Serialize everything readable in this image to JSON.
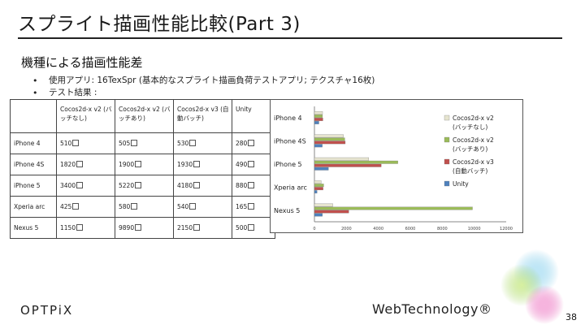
{
  "slide": {
    "title": "スプライト描画性能比較(Part 3)",
    "subtitle": "機種による描画性能差",
    "bullets": [
      "使用アプリ: 16TexSpr (基本的なスプライト描画負荷テストアプリ; テクスチャ16枚)",
      "テスト結果 :"
    ],
    "page_number": "38"
  },
  "table": {
    "headers": [
      "",
      "Cocos2d-x v2 (バッチなし)",
      "Cocos2d-x v2 (バッチあり)",
      "Cocos2d-x v3 (自動バッチ)",
      "Unity"
    ],
    "rows": [
      [
        "iPhone 4",
        "510",
        "505",
        "530",
        "280"
      ],
      [
        "iPhone 4S",
        "1820",
        "1900",
        "1930",
        "490"
      ],
      [
        "iPhone 5",
        "3400",
        "5220",
        "4180",
        "880"
      ],
      [
        "Xperia arc",
        "425",
        "580",
        "540",
        "165"
      ],
      [
        "Nexus 5",
        "1150",
        "9890",
        "2150",
        "500"
      ]
    ]
  },
  "chart_data": {
    "type": "bar",
    "orientation": "horizontal",
    "categories": [
      "iPhone 4",
      "iPhone 4S",
      "iPhone 5",
      "Xperia arc",
      "Nexus 5"
    ],
    "series": [
      {
        "name": "Cocos2d-x v2 (バッチなし)",
        "color": "#e6e4cf",
        "values": [
          510,
          1820,
          3400,
          425,
          1150
        ]
      },
      {
        "name": "Cocos2d-x v2 (バッチあり)",
        "color": "#9bbb59",
        "values": [
          505,
          1900,
          5220,
          580,
          9890
        ]
      },
      {
        "name": "Cocos2d-x v3 (自動バッチ)",
        "color": "#c0504d",
        "values": [
          530,
          1930,
          4180,
          540,
          2150
        ]
      },
      {
        "name": "Unity",
        "color": "#4f81bd",
        "values": [
          280,
          490,
          880,
          165,
          500
        ]
      }
    ],
    "xlim": [
      0,
      12000
    ],
    "xticks": [
      "0",
      "2000",
      "4000",
      "6000",
      "8000",
      "10000",
      "12000"
    ],
    "legend_position": "right",
    "grid": false
  },
  "logos": {
    "left": "OPTPiX",
    "right": "WebTechnology"
  }
}
